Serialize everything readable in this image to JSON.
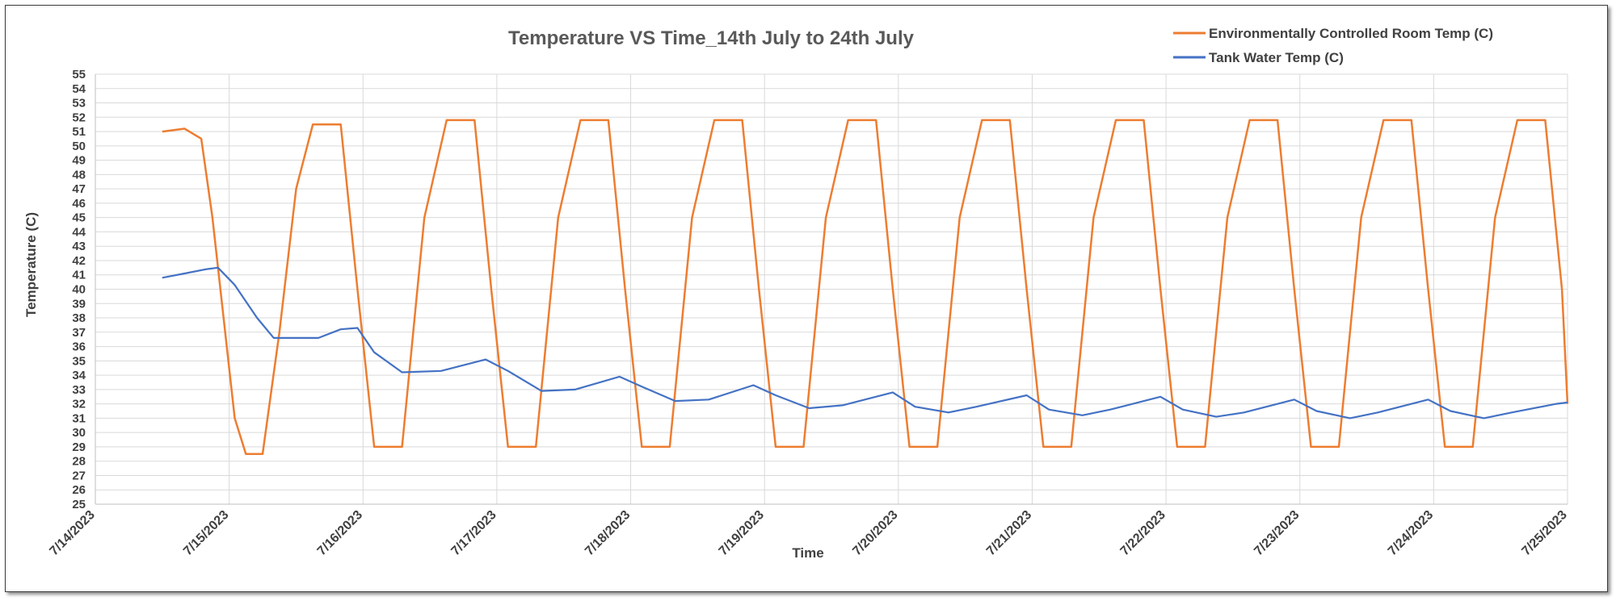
{
  "chart_data": {
    "type": "line",
    "title": "Temperature VS Time_14th July to 24th July",
    "xlabel": "Time",
    "ylabel": "Temperature (C)",
    "ylim": [
      25,
      55
    ],
    "ytick_step": 1,
    "xlim": [
      "7/14/2023",
      "7/25/2023"
    ],
    "x_tick_labels": [
      "7/14/2023",
      "7/15/2023",
      "7/16/2023",
      "7/17/2023",
      "7/18/2023",
      "7/19/2023",
      "7/20/2023",
      "7/21/2023",
      "7/22/2023",
      "7/23/2023",
      "7/24/2023",
      "7/25/2023"
    ],
    "grid": true,
    "legend_position": "top-right",
    "series": [
      {
        "name": "Environmentally Controlled Room Temp (C)",
        "color": "#ed7d31",
        "points": [
          [
            "7/14/2023 12:00",
            51.0
          ],
          [
            "7/14/2023 16:00",
            51.2
          ],
          [
            "7/14/2023 19:00",
            50.5
          ],
          [
            "7/14/2023 21:00",
            45
          ],
          [
            "7/14/2023 23:00",
            38
          ],
          [
            "7/15/2023 01:00",
            31
          ],
          [
            "7/15/2023 03:00",
            28.5
          ],
          [
            "7/15/2023 06:00",
            28.5
          ],
          [
            "7/15/2023 09:00",
            37
          ],
          [
            "7/15/2023 12:00",
            47
          ],
          [
            "7/15/2023 15:00",
            51.5
          ],
          [
            "7/15/2023 20:00",
            51.5
          ],
          [
            "7/15/2023 23:00",
            40
          ],
          [
            "7/16/2023 02:00",
            29
          ],
          [
            "7/16/2023 07:00",
            29
          ],
          [
            "7/16/2023 11:00",
            45
          ],
          [
            "7/16/2023 15:00",
            51.8
          ],
          [
            "7/16/2023 20:00",
            51.8
          ],
          [
            "7/16/2023 23:00",
            40
          ],
          [
            "7/17/2023 02:00",
            29
          ],
          [
            "7/17/2023 07:00",
            29
          ],
          [
            "7/17/2023 11:00",
            45
          ],
          [
            "7/17/2023 15:00",
            51.8
          ],
          [
            "7/17/2023 20:00",
            51.8
          ],
          [
            "7/17/2023 23:00",
            40
          ],
          [
            "7/18/2023 02:00",
            29
          ],
          [
            "7/18/2023 07:00",
            29
          ],
          [
            "7/18/2023 11:00",
            45
          ],
          [
            "7/18/2023 15:00",
            51.8
          ],
          [
            "7/18/2023 20:00",
            51.8
          ],
          [
            "7/18/2023 23:00",
            40
          ],
          [
            "7/19/2023 02:00",
            29
          ],
          [
            "7/19/2023 07:00",
            29
          ],
          [
            "7/19/2023 11:00",
            45
          ],
          [
            "7/19/2023 15:00",
            51.8
          ],
          [
            "7/19/2023 20:00",
            51.8
          ],
          [
            "7/19/2023 23:00",
            40
          ],
          [
            "7/20/2023 02:00",
            29
          ],
          [
            "7/20/2023 07:00",
            29
          ],
          [
            "7/20/2023 11:00",
            45
          ],
          [
            "7/20/2023 15:00",
            51.8
          ],
          [
            "7/20/2023 20:00",
            51.8
          ],
          [
            "7/20/2023 23:00",
            40
          ],
          [
            "7/21/2023 02:00",
            29
          ],
          [
            "7/21/2023 07:00",
            29
          ],
          [
            "7/21/2023 11:00",
            45
          ],
          [
            "7/21/2023 15:00",
            51.8
          ],
          [
            "7/21/2023 20:00",
            51.8
          ],
          [
            "7/21/2023 23:00",
            40
          ],
          [
            "7/22/2023 02:00",
            29
          ],
          [
            "7/22/2023 07:00",
            29
          ],
          [
            "7/22/2023 11:00",
            45
          ],
          [
            "7/22/2023 15:00",
            51.8
          ],
          [
            "7/22/2023 20:00",
            51.8
          ],
          [
            "7/22/2023 23:00",
            40
          ],
          [
            "7/23/2023 02:00",
            29
          ],
          [
            "7/23/2023 07:00",
            29
          ],
          [
            "7/23/2023 11:00",
            45
          ],
          [
            "7/23/2023 15:00",
            51.8
          ],
          [
            "7/23/2023 20:00",
            51.8
          ],
          [
            "7/23/2023 23:00",
            40
          ],
          [
            "7/24/2023 02:00",
            29
          ],
          [
            "7/24/2023 07:00",
            29
          ],
          [
            "7/24/2023 11:00",
            45
          ],
          [
            "7/24/2023 15:00",
            51.8
          ],
          [
            "7/24/2023 20:00",
            51.8
          ],
          [
            "7/24/2023 23:00",
            40
          ],
          [
            "7/25/2023 00:00",
            32
          ]
        ]
      },
      {
        "name": "Tank Water Temp (C)",
        "color": "#4472c4",
        "points": [
          [
            "7/14/2023 12:00",
            40.8
          ],
          [
            "7/14/2023 16:00",
            41.1
          ],
          [
            "7/14/2023 20:00",
            41.4
          ],
          [
            "7/14/2023 22:00",
            41.5
          ],
          [
            "7/15/2023 01:00",
            40.3
          ],
          [
            "7/15/2023 05:00",
            38
          ],
          [
            "7/15/2023 08:00",
            36.6
          ],
          [
            "7/15/2023 16:00",
            36.6
          ],
          [
            "7/15/2023 20:00",
            37.2
          ],
          [
            "7/15/2023 23:00",
            37.3
          ],
          [
            "7/16/2023 02:00",
            35.6
          ],
          [
            "7/16/2023 07:00",
            34.2
          ],
          [
            "7/16/2023 14:00",
            34.3
          ],
          [
            "7/16/2023 22:00",
            35.1
          ],
          [
            "7/17/2023 02:00",
            34.3
          ],
          [
            "7/17/2023 08:00",
            32.9
          ],
          [
            "7/17/2023 14:00",
            33
          ],
          [
            "7/17/2023 22:00",
            33.9
          ],
          [
            "7/18/2023 02:00",
            33.2
          ],
          [
            "7/18/2023 08:00",
            32.2
          ],
          [
            "7/18/2023 14:00",
            32.3
          ],
          [
            "7/18/2023 22:00",
            33.3
          ],
          [
            "7/19/2023 02:00",
            32.6
          ],
          [
            "7/19/2023 08:00",
            31.7
          ],
          [
            "7/19/2023 14:00",
            31.9
          ],
          [
            "7/19/2023 23:00",
            32.8
          ],
          [
            "7/20/2023 03:00",
            31.8
          ],
          [
            "7/20/2023 09:00",
            31.4
          ],
          [
            "7/20/2023 14:00",
            31.8
          ],
          [
            "7/20/2023 23:00",
            32.6
          ],
          [
            "7/21/2023 03:00",
            31.6
          ],
          [
            "7/21/2023 09:00",
            31.2
          ],
          [
            "7/21/2023 14:00",
            31.6
          ],
          [
            "7/21/2023 23:00",
            32.5
          ],
          [
            "7/22/2023 03:00",
            31.6
          ],
          [
            "7/22/2023 09:00",
            31.1
          ],
          [
            "7/22/2023 14:00",
            31.4
          ],
          [
            "7/22/2023 23:00",
            32.3
          ],
          [
            "7/23/2023 03:00",
            31.5
          ],
          [
            "7/23/2023 09:00",
            31
          ],
          [
            "7/23/2023 14:00",
            31.4
          ],
          [
            "7/23/2023 23:00",
            32.3
          ],
          [
            "7/24/2023 03:00",
            31.5
          ],
          [
            "7/24/2023 09:00",
            31
          ],
          [
            "7/24/2023 14:00",
            31.4
          ],
          [
            "7/24/2023 22:00",
            32
          ],
          [
            "7/25/2023 00:00",
            32.1
          ]
        ]
      }
    ]
  }
}
